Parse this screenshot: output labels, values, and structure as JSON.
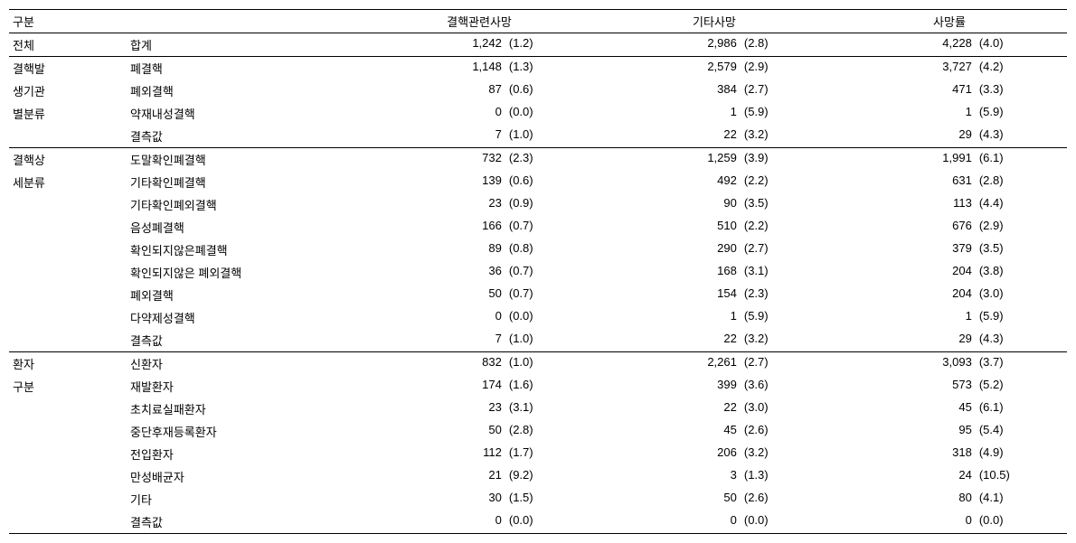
{
  "headers": {
    "group": "구분",
    "measures": [
      "결핵관련사망",
      "기타사망",
      "사망률"
    ]
  },
  "sections": [
    {
      "group": "전체",
      "groupLines": [
        "전체"
      ],
      "rows": [
        {
          "label": "합계",
          "vals": [
            [
              "1,242",
              "(1.2)"
            ],
            [
              "2,986",
              "(2.8)"
            ],
            [
              "4,228",
              "(4.0)"
            ]
          ]
        }
      ]
    },
    {
      "group": "결핵발생기관별분류",
      "groupLines": [
        "결핵발",
        "생기관",
        "별분류"
      ],
      "rows": [
        {
          "label": "폐결핵",
          "vals": [
            [
              "1,148",
              "(1.3)"
            ],
            [
              "2,579",
              "(2.9)"
            ],
            [
              "3,727",
              "(4.2)"
            ]
          ]
        },
        {
          "label": "폐외결핵",
          "vals": [
            [
              "87",
              "(0.6)"
            ],
            [
              "384",
              "(2.7)"
            ],
            [
              "471",
              "(3.3)"
            ]
          ]
        },
        {
          "label": "약재내성결핵",
          "vals": [
            [
              "0",
              "(0.0)"
            ],
            [
              "1",
              "(5.9)"
            ],
            [
              "1",
              "(5.9)"
            ]
          ]
        },
        {
          "label": "결측값",
          "vals": [
            [
              "7",
              "(1.0)"
            ],
            [
              "22",
              "(3.2)"
            ],
            [
              "29",
              "(4.3)"
            ]
          ]
        }
      ]
    },
    {
      "group": "결핵상세분류",
      "groupLines": [
        "결핵상",
        "세분류"
      ],
      "rows": [
        {
          "label": "도말확인폐결핵",
          "vals": [
            [
              "732",
              "(2.3)"
            ],
            [
              "1,259",
              "(3.9)"
            ],
            [
              "1,991",
              "(6.1)"
            ]
          ]
        },
        {
          "label": "기타확인폐결핵",
          "vals": [
            [
              "139",
              "(0.6)"
            ],
            [
              "492",
              "(2.2)"
            ],
            [
              "631",
              "(2.8)"
            ]
          ]
        },
        {
          "label": "기타확인폐외결핵",
          "vals": [
            [
              "23",
              "(0.9)"
            ],
            [
              "90",
              "(3.5)"
            ],
            [
              "113",
              "(4.4)"
            ]
          ]
        },
        {
          "label": "음성폐결핵",
          "vals": [
            [
              "166",
              "(0.7)"
            ],
            [
              "510",
              "(2.2)"
            ],
            [
              "676",
              "(2.9)"
            ]
          ]
        },
        {
          "label": "확인되지않은폐결핵",
          "vals": [
            [
              "89",
              "(0.8)"
            ],
            [
              "290",
              "(2.7)"
            ],
            [
              "379",
              "(3.5)"
            ]
          ]
        },
        {
          "label": "확인되지않은 폐외결핵",
          "vals": [
            [
              "36",
              "(0.7)"
            ],
            [
              "168",
              "(3.1)"
            ],
            [
              "204",
              "(3.8)"
            ]
          ]
        },
        {
          "label": "폐외결핵",
          "vals": [
            [
              "50",
              "(0.7)"
            ],
            [
              "154",
              "(2.3)"
            ],
            [
              "204",
              "(3.0)"
            ]
          ]
        },
        {
          "label": "다약제성결핵",
          "vals": [
            [
              "0",
              "(0.0)"
            ],
            [
              "1",
              "(5.9)"
            ],
            [
              "1",
              "(5.9)"
            ]
          ]
        },
        {
          "label": "결측값",
          "vals": [
            [
              "7",
              "(1.0)"
            ],
            [
              "22",
              "(3.2)"
            ],
            [
              "29",
              "(4.3)"
            ]
          ]
        }
      ]
    },
    {
      "group": "환자구분",
      "groupLines": [
        "환자",
        "구분"
      ],
      "rows": [
        {
          "label": "신환자",
          "vals": [
            [
              "832",
              "(1.0)"
            ],
            [
              "2,261",
              "(2.7)"
            ],
            [
              "3,093",
              "(3.7)"
            ]
          ]
        },
        {
          "label": "재발환자",
          "vals": [
            [
              "174",
              "(1.6)"
            ],
            [
              "399",
              "(3.6)"
            ],
            [
              "573",
              "(5.2)"
            ]
          ]
        },
        {
          "label": "초치료실패환자",
          "vals": [
            [
              "23",
              "(3.1)"
            ],
            [
              "22",
              "(3.0)"
            ],
            [
              "45",
              "(6.1)"
            ]
          ]
        },
        {
          "label": "중단후재등록환자",
          "vals": [
            [
              "50",
              "(2.8)"
            ],
            [
              "45",
              "(2.6)"
            ],
            [
              "95",
              "(5.4)"
            ]
          ]
        },
        {
          "label": "전입환자",
          "vals": [
            [
              "112",
              "(1.7)"
            ],
            [
              "206",
              "(3.2)"
            ],
            [
              "318",
              "(4.9)"
            ]
          ]
        },
        {
          "label": "만성배균자",
          "vals": [
            [
              "21",
              "(9.2)"
            ],
            [
              "3",
              "(1.3)"
            ],
            [
              "24",
              "(10.5)"
            ]
          ]
        },
        {
          "label": "기타",
          "vals": [
            [
              "30",
              "(1.5)"
            ],
            [
              "50",
              "(2.6)"
            ],
            [
              "80",
              "(4.1)"
            ]
          ]
        },
        {
          "label": "결측값",
          "vals": [
            [
              "0",
              "(0.0)"
            ],
            [
              "0",
              "(0.0)"
            ],
            [
              "0",
              "(0.0)"
            ]
          ]
        }
      ]
    }
  ]
}
